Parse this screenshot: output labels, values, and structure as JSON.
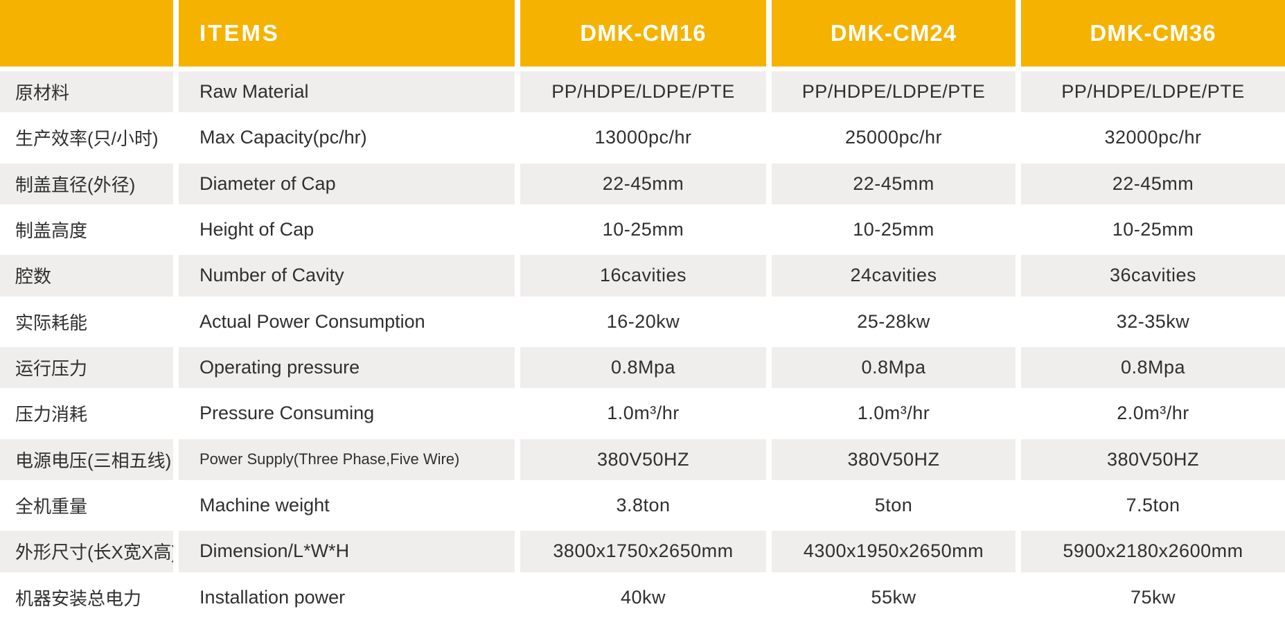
{
  "colors": {
    "header_bg": "#F5B201",
    "header_text": "#FFFFFF",
    "row_alt_bg": "#EFEEED",
    "row_bg": "#FFFFFF",
    "body_text": "#2F2F2F"
  },
  "table": {
    "header": {
      "blank": "",
      "items_label": "ITEMS",
      "models": [
        "DMK-CM16",
        "DMK-CM24",
        "DMK-CM36"
      ]
    },
    "rows": [
      {
        "cn": "原材料",
        "en": "Raw Material",
        "values": [
          "PP/HDPE/LDPE/PTE",
          "PP/HDPE/LDPE/PTE",
          "PP/HDPE/LDPE/PTE"
        ]
      },
      {
        "cn": "生产效率(只/小时)",
        "en": "Max Capacity(pc/hr)",
        "values": [
          "13000pc/hr",
          "25000pc/hr",
          "32000pc/hr"
        ]
      },
      {
        "cn": "制盖直径(外径)",
        "en": "Diameter of Cap",
        "values": [
          "22-45mm",
          "22-45mm",
          "22-45mm"
        ]
      },
      {
        "cn": "制盖高度",
        "en": "Height of Cap",
        "values": [
          "10-25mm",
          "10-25mm",
          "10-25mm"
        ]
      },
      {
        "cn": "腔数",
        "en": "Number of Cavity",
        "values": [
          "16cavities",
          "24cavities",
          "36cavities"
        ]
      },
      {
        "cn": "实际耗能",
        "en": "Actual Power Consumption",
        "values": [
          "16-20kw",
          "25-28kw",
          "32-35kw"
        ]
      },
      {
        "cn": "运行压力",
        "en": "Operating pressure",
        "values": [
          "0.8Mpa",
          "0.8Mpa",
          "0.8Mpa"
        ]
      },
      {
        "cn": "压力消耗",
        "en": "Pressure Consuming",
        "values": [
          "1.0m³/hr",
          "1.0m³/hr",
          "2.0m³/hr"
        ]
      },
      {
        "cn": "电源电压(三相五线)",
        "en": "Power Supply(Three Phase,Five Wire)",
        "values": [
          "380V50HZ",
          "380V50HZ",
          "380V50HZ"
        ]
      },
      {
        "cn": "全机重量",
        "en": "Machine weight",
        "values": [
          "3.8ton",
          "5ton",
          "7.5ton"
        ]
      },
      {
        "cn": "外形尺寸(长X宽X高)",
        "en": "Dimension/L*W*H",
        "values": [
          "3800x1750x2650mm",
          "4300x1950x2650mm",
          "5900x2180x2600mm"
        ]
      },
      {
        "cn": "机器安装总电力",
        "en": "Installation power",
        "values": [
          "40kw",
          "55kw",
          "75kw"
        ]
      }
    ]
  },
  "chart_data": {
    "type": "table",
    "columns": [
      "",
      "ITEMS",
      "DMK-CM16",
      "DMK-CM24",
      "DMK-CM36"
    ],
    "rows": [
      [
        "原材料",
        "Raw Material",
        "PP/HDPE/LDPE/PTE",
        "PP/HDPE/LDPE/PTE",
        "PP/HDPE/LDPE/PTE"
      ],
      [
        "生产效率(只/小时)",
        "Max Capacity(pc/hr)",
        "13000pc/hr",
        "25000pc/hr",
        "32000pc/hr"
      ],
      [
        "制盖直径(外径)",
        "Diameter of Cap",
        "22-45mm",
        "22-45mm",
        "22-45mm"
      ],
      [
        "制盖高度",
        "Height of Cap",
        "10-25mm",
        "10-25mm",
        "10-25mm"
      ],
      [
        "腔数",
        "Number of Cavity",
        "16cavities",
        "24cavities",
        "36cavities"
      ],
      [
        "实际耗能",
        "Actual Power Consumption",
        "16-20kw",
        "25-28kw",
        "32-35kw"
      ],
      [
        "运行压力",
        "Operating pressure",
        "0.8Mpa",
        "0.8Mpa",
        "0.8Mpa"
      ],
      [
        "压力消耗",
        "Pressure Consuming",
        "1.0m³/hr",
        "1.0m³/hr",
        "2.0m³/hr"
      ],
      [
        "电源电压(三相五线)",
        "Power Supply(Three Phase,Five Wire)",
        "380V50HZ",
        "380V50HZ",
        "380V50HZ"
      ],
      [
        "全机重量",
        "Machine weight",
        "3.8ton",
        "5ton",
        "7.5ton"
      ],
      [
        "外形尺寸(长X宽X高)",
        "Dimension/L*W*H",
        "3800x1750x2650mm",
        "4300x1950x2650mm",
        "5900x2180x2600mm"
      ],
      [
        "机器安装总电力",
        "Installation power",
        "40kw",
        "55kw",
        "75kw"
      ]
    ],
    "layout": {
      "header_fill": "#F5B201",
      "alt_row_fill": "#EFEEED",
      "grid": "white gaps between all cells"
    }
  }
}
